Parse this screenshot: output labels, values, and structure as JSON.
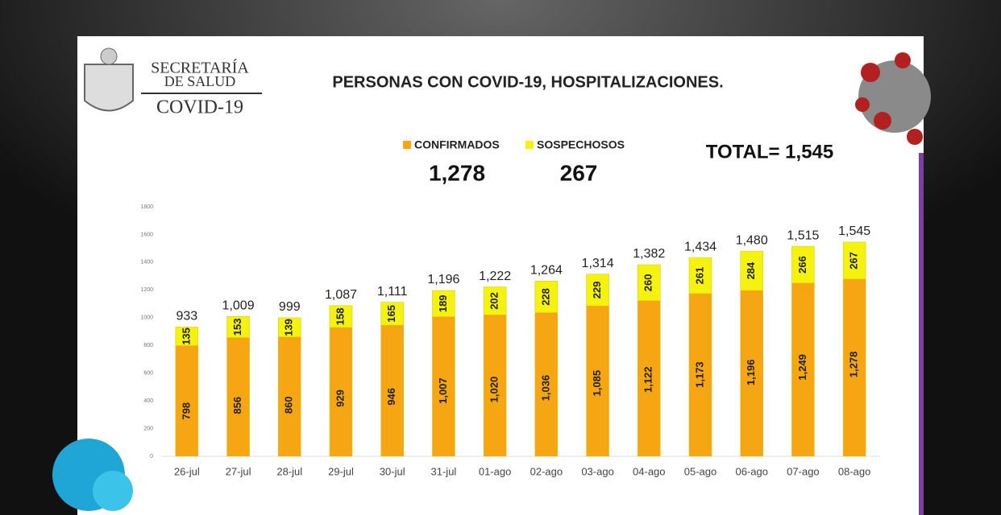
{
  "header": {
    "org_line1": "SECRETARÍA",
    "org_line2": "DE SALUD",
    "org_line3": "COVID-19"
  },
  "summary": {
    "confirmados": "1,278",
    "sospechosos": "267",
    "total": "TOTAL= 1,545"
  },
  "chart_data": {
    "type": "stacked_bar",
    "title": "PERSONAS CON COVID-19, HOSPITALIZACIONES.",
    "categories": [
      "26-jul",
      "27-jul",
      "28-jul",
      "29-jul",
      "30-jul",
      "31-jul",
      "01-ago",
      "02-ago",
      "03-ago",
      "04-ago",
      "05-ago",
      "06-ago",
      "07-ago",
      "08-ago"
    ],
    "series": [
      {
        "name": "CONFIRMADOS",
        "color": "#f5a612",
        "values": [
          798,
          856,
          860,
          929,
          946,
          1007,
          1020,
          1036,
          1085,
          1122,
          1173,
          1196,
          1249,
          1278
        ],
        "value_labels": [
          "798",
          "856",
          "860",
          "929",
          "946",
          "1,007",
          "1,020",
          "1,036",
          "1,085",
          "1,122",
          "1,173",
          "1,196",
          "1,249",
          "1,278"
        ]
      },
      {
        "name": "SOSPECHOSOS",
        "color": "#f4f20e",
        "values": [
          135,
          153,
          139,
          158,
          165,
          189,
          202,
          228,
          229,
          260,
          261,
          284,
          266,
          267
        ]
      }
    ],
    "total_labels": [
      "933",
      "1,009",
      "999",
      "1,087",
      "1,111",
      "1,196",
      "1,222",
      "1,264",
      "1,314",
      "1,382",
      "1,434",
      "1,480",
      "1,515",
      "1,545"
    ],
    "ylim": [
      0,
      1800
    ],
    "yticks": [
      0,
      200,
      400,
      600,
      800,
      1000,
      1200,
      1400,
      1600,
      1800
    ],
    "grid": false
  }
}
